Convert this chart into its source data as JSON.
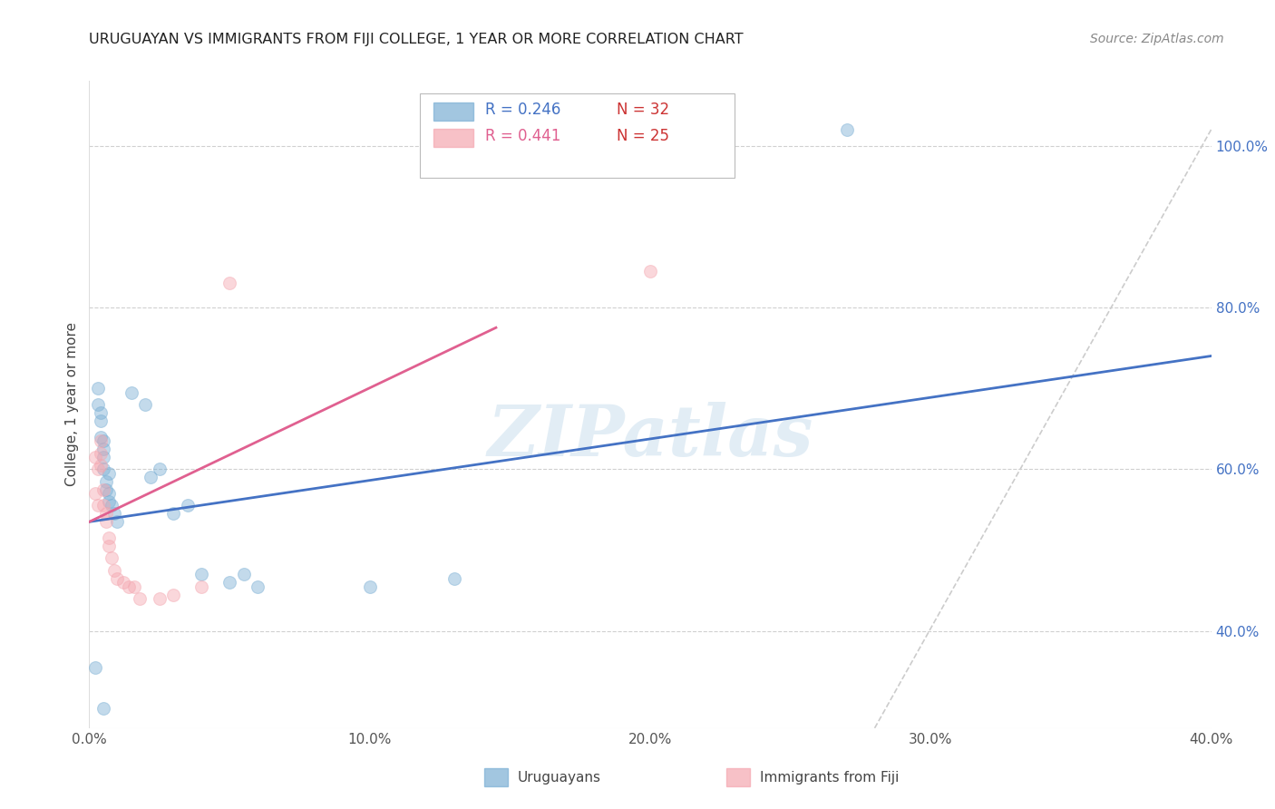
{
  "title": "URUGUAYAN VS IMMIGRANTS FROM FIJI COLLEGE, 1 YEAR OR MORE CORRELATION CHART",
  "source": "Source: ZipAtlas.com",
  "ylabel": "College, 1 year or more",
  "xlim": [
    0.0,
    0.4
  ],
  "ylim": [
    0.28,
    1.08
  ],
  "yticks_right": [
    0.4,
    0.6,
    0.8,
    1.0
  ],
  "ytick_right_labels": [
    "40.0%",
    "60.0%",
    "80.0%",
    "100.0%"
  ],
  "xticks": [
    0.0,
    0.1,
    0.2,
    0.3,
    0.4
  ],
  "xtick_labels": [
    "0.0%",
    "10.0%",
    "20.0%",
    "30.0%",
    "40.0%"
  ],
  "watermark": "ZIPatlas",
  "blue_color": "#7bafd4",
  "pink_color": "#f4a7b0",
  "blue_line_color": "#4472c4",
  "pink_line_color": "#e06090",
  "blue_label": "Uruguayans",
  "pink_label": "Immigrants from Fiji",
  "legend_R_blue": "R = 0.246",
  "legend_N_blue": "N = 32",
  "legend_R_pink": "R = 0.441",
  "legend_N_pink": "N = 25",
  "blue_scatter_x": [
    0.002,
    0.003,
    0.003,
    0.004,
    0.004,
    0.004,
    0.005,
    0.005,
    0.005,
    0.005,
    0.006,
    0.006,
    0.007,
    0.007,
    0.007,
    0.008,
    0.009,
    0.01,
    0.015,
    0.02,
    0.022,
    0.025,
    0.03,
    0.035,
    0.04,
    0.05,
    0.055,
    0.06,
    0.1,
    0.13,
    0.27,
    0.005
  ],
  "blue_scatter_y": [
    0.355,
    0.68,
    0.7,
    0.64,
    0.66,
    0.67,
    0.6,
    0.615,
    0.625,
    0.635,
    0.575,
    0.585,
    0.56,
    0.57,
    0.595,
    0.555,
    0.545,
    0.535,
    0.695,
    0.68,
    0.59,
    0.6,
    0.545,
    0.555,
    0.47,
    0.46,
    0.47,
    0.455,
    0.455,
    0.465,
    1.02,
    0.305
  ],
  "pink_scatter_x": [
    0.002,
    0.002,
    0.003,
    0.003,
    0.004,
    0.004,
    0.004,
    0.005,
    0.005,
    0.006,
    0.006,
    0.007,
    0.007,
    0.008,
    0.009,
    0.01,
    0.012,
    0.014,
    0.016,
    0.018,
    0.025,
    0.03,
    0.04,
    0.05,
    0.2
  ],
  "pink_scatter_y": [
    0.615,
    0.57,
    0.6,
    0.555,
    0.605,
    0.62,
    0.635,
    0.575,
    0.555,
    0.535,
    0.545,
    0.515,
    0.505,
    0.49,
    0.475,
    0.465,
    0.46,
    0.455,
    0.455,
    0.44,
    0.44,
    0.445,
    0.455,
    0.83,
    0.845
  ],
  "blue_line_x": [
    0.0,
    0.4
  ],
  "blue_line_y": [
    0.535,
    0.74
  ],
  "pink_line_x": [
    0.0,
    0.145
  ],
  "pink_line_y": [
    0.535,
    0.775
  ],
  "diag_line_x": [
    0.28,
    0.4
  ],
  "diag_line_y": [
    0.28,
    1.02
  ],
  "marker_size": 100,
  "marker_alpha": 0.45,
  "background_color": "#ffffff",
  "grid_color": "#d0d0d0"
}
